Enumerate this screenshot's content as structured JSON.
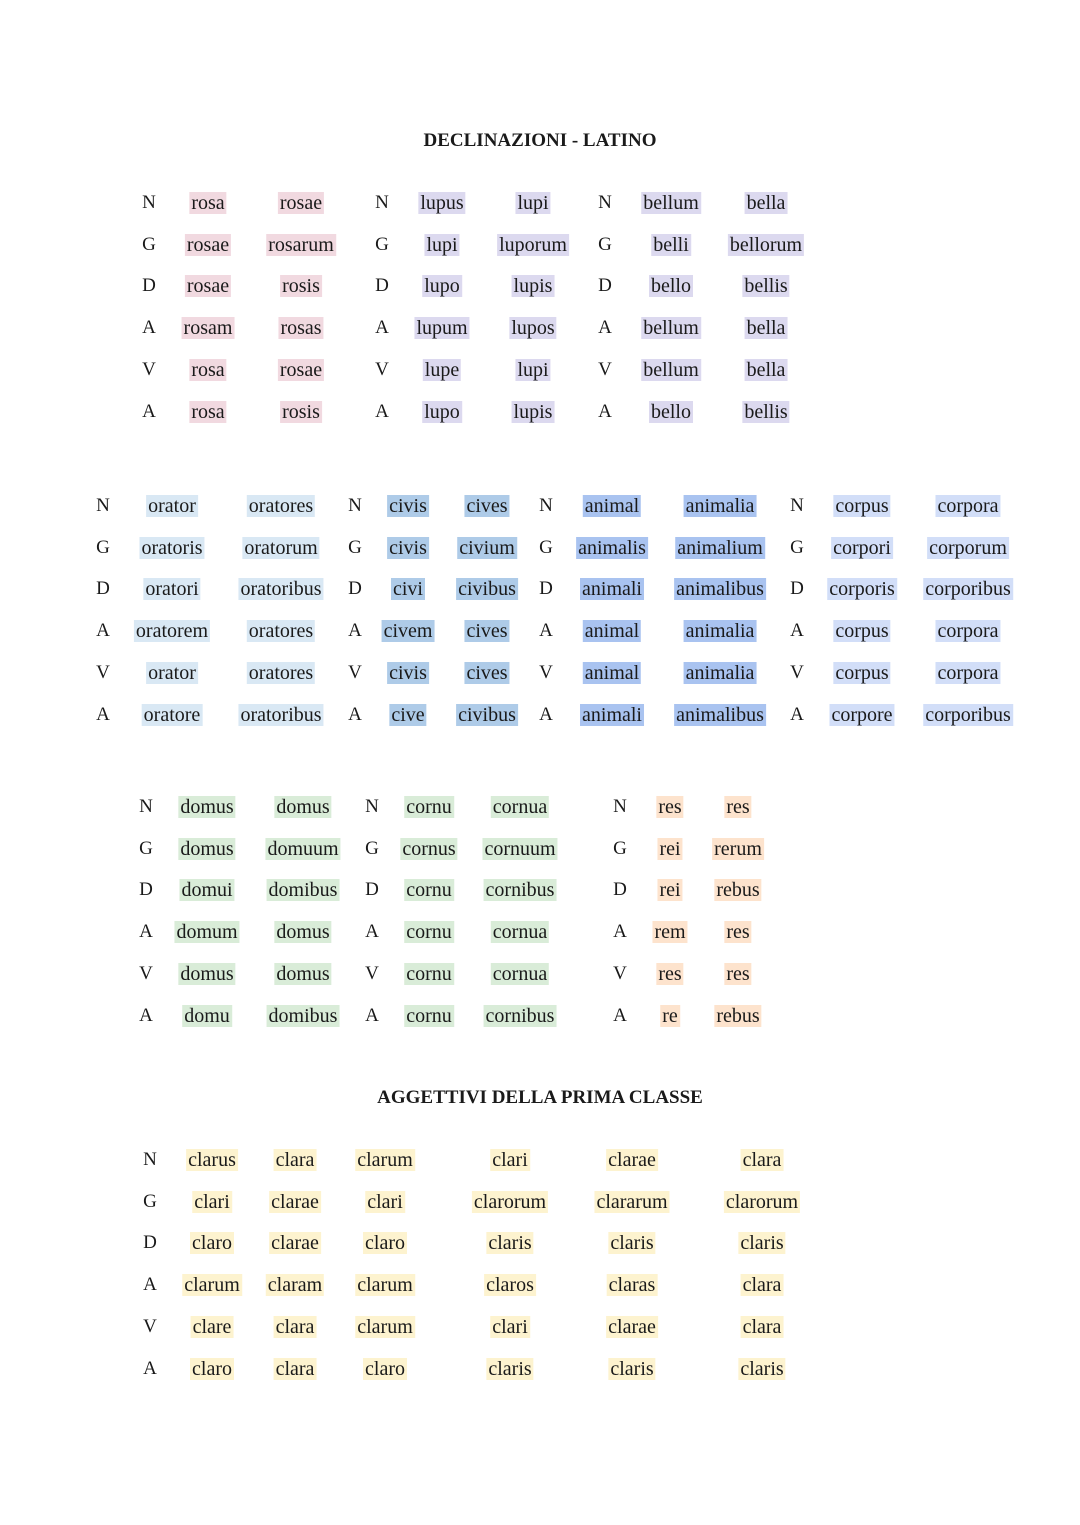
{
  "title": "DECLINAZIONI - LATINO",
  "adjectives_title": "AGGETTIVI DELLA PRIMA CLASSE",
  "colors": {
    "first_declension": "#f1d9e0",
    "second_masc": "#dcd9ef",
    "second_neut": "#dcd9ef",
    "third_orator": "#d9e8f4",
    "third_civis": "#aecbe8",
    "third_animal": "#a9c3f0",
    "third_corpus": "#d2def8",
    "fourth": "#d9ecd8",
    "fifth": "#fde3cd",
    "adjectives": "#fdf3cf"
  },
  "blocks": [
    {
      "columns": [
        "label",
        "first_declension",
        "first_declension",
        "label",
        "second_masc",
        "second_masc",
        "label",
        "second_neut",
        "second_neut"
      ],
      "rows": [
        [
          "N",
          "rosa",
          "rosae",
          "N",
          "lupus",
          "lupi",
          "N",
          "bellum",
          "bella"
        ],
        [
          "G",
          "rosae",
          "rosarum",
          "G",
          "lupi",
          "luporum",
          "G",
          "belli",
          "bellorum"
        ],
        [
          "D",
          "rosae",
          "rosis",
          "D",
          "lupo",
          "lupis",
          "D",
          "bello",
          "bellis"
        ],
        [
          "A",
          "rosam",
          "rosas",
          "A",
          "lupum",
          "lupos",
          "A",
          "bellum",
          "bella"
        ],
        [
          "V",
          "rosa",
          "rosae",
          "V",
          "lupe",
          "lupi",
          "V",
          "bellum",
          "bella"
        ],
        [
          "A",
          "rosa",
          "rosis",
          "A",
          "lupo",
          "lupis",
          "A",
          "bello",
          "bellis"
        ]
      ]
    },
    {
      "columns": [
        "label",
        "third_orator",
        "third_orator",
        "label",
        "third_civis",
        "third_civis",
        "label",
        "third_animal",
        "third_animal",
        "label",
        "third_corpus",
        "third_corpus"
      ],
      "rows": [
        [
          "N",
          "orator",
          "oratores",
          "N",
          "civis",
          "cives",
          "N",
          "animal",
          "animalia",
          "N",
          "corpus",
          "corpora"
        ],
        [
          "G",
          "oratoris",
          "oratorum",
          "G",
          "civis",
          "civium",
          "G",
          "animalis",
          "animalium",
          "G",
          "corpori",
          "corporum"
        ],
        [
          "D",
          "oratori",
          "oratoribus",
          "D",
          "civi",
          "civibus",
          "D",
          "animali",
          "animalibus",
          "D",
          "corporis",
          "corporibus"
        ],
        [
          "A",
          "oratorem",
          "oratores",
          "A",
          "civem",
          "cives",
          "A",
          "animal",
          "animalia",
          "A",
          "corpus",
          "corpora"
        ],
        [
          "V",
          "orator",
          "oratores",
          "V",
          "civis",
          "cives",
          "V",
          "animal",
          "animalia",
          "V",
          "corpus",
          "corpora"
        ],
        [
          "A",
          "oratore",
          "oratoribus",
          "A",
          "cive",
          "civibus",
          "A",
          "animali",
          "animalibus",
          "A",
          "corpore",
          "corporibus"
        ]
      ]
    },
    {
      "columns": [
        "label",
        "fourth",
        "fourth",
        "label",
        "fourth",
        "fourth",
        "label",
        "fifth",
        "fifth"
      ],
      "rows": [
        [
          "N",
          "domus",
          "domus",
          "N",
          "cornu",
          "cornua",
          "N",
          "res",
          "res"
        ],
        [
          "G",
          "domus",
          "domuum",
          "G",
          "cornus",
          "cornuum",
          "G",
          "rei",
          "rerum"
        ],
        [
          "D",
          "domui",
          "domibus",
          "D",
          "cornu",
          "cornibus",
          "D",
          "rei",
          "rebus"
        ],
        [
          "A",
          "domum",
          "domus",
          "A",
          "cornu",
          "cornua",
          "A",
          "rem",
          "res"
        ],
        [
          "V",
          "domus",
          "domus",
          "V",
          "cornu",
          "cornua",
          "V",
          "res",
          "res"
        ],
        [
          "A",
          "domu",
          "domibus",
          "A",
          "cornu",
          "cornibus",
          "A",
          "re",
          "rebus"
        ]
      ]
    },
    {
      "columns": [
        "label",
        "adjectives",
        "adjectives",
        "adjectives",
        "adjectives",
        "adjectives",
        "adjectives"
      ],
      "rows": [
        [
          "N",
          "clarus",
          "clara",
          "clarum",
          "clari",
          "clarae",
          "clara"
        ],
        [
          "G",
          "clari",
          "clarae",
          "clari",
          "clarorum",
          "clararum",
          "clarorum"
        ],
        [
          "D",
          "claro",
          "clarae",
          "claro",
          "claris",
          "claris",
          "claris"
        ],
        [
          "A",
          "clarum",
          "claram",
          "clarum",
          "claros",
          "claras",
          "clara"
        ],
        [
          "V",
          "clare",
          "clara",
          "clarum",
          "clari",
          "clarae",
          "clara"
        ],
        [
          "A",
          "claro",
          "clara",
          "claro",
          "claris",
          "claris",
          "claris"
        ]
      ]
    }
  ]
}
